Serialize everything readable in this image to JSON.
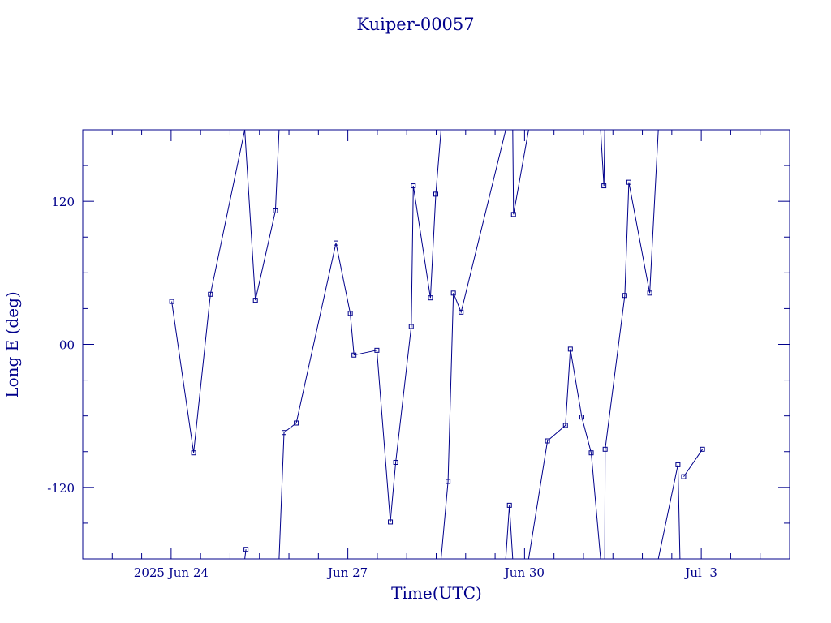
{
  "chart_data": {
    "type": "line",
    "title": "Kuiper-00057",
    "xlabel": "Time(UTC)",
    "ylabel": "Long E (deg)",
    "xlim": [
      "2025-06-22T12:00",
      "2025-07-04T12:00"
    ],
    "ylim": [
      -180,
      180
    ],
    "x_ticks": [
      {
        "t": "2025-06-24T00:00",
        "label": "2025 Jun 24"
      },
      {
        "t": "2025-06-27T00:00",
        "label": "Jun 27"
      },
      {
        "t": "2025-06-30T00:00",
        "label": "Jun 30"
      },
      {
        "t": "2025-07-03T00:00",
        "label": "Jul  3"
      }
    ],
    "y_ticks": [
      {
        "v": 120,
        "label": "120"
      },
      {
        "v": 0,
        "label": "00"
      },
      {
        "v": -120,
        "label": "-120"
      }
    ],
    "series": [
      {
        "color": "#00008b",
        "segments": [
          [
            {
              "x": "2025-06-24T00:15",
              "y": 36
            },
            {
              "x": "2025-06-24T09:10",
              "y": -91
            },
            {
              "x": "2025-06-24T16:00",
              "y": 42
            },
            {
              "x": "2025-06-25T06:00",
              "y": 180
            }
          ],
          [
            {
              "x": "2025-06-25T06:00",
              "y": 180
            },
            {
              "x": "2025-06-25T10:20",
              "y": 37
            },
            {
              "x": "2025-06-25T18:30",
              "y": 112
            },
            {
              "x": "2025-06-25T20:00",
              "y": 180
            }
          ],
          [
            {
              "x": "2025-06-25T06:00",
              "y": -180
            },
            {
              "x": "2025-06-25T06:30",
              "y": -172
            }
          ],
          [
            {
              "x": "2025-06-25T20:00",
              "y": -180
            },
            {
              "x": "2025-06-25T22:00",
              "y": -74
            },
            {
              "x": "2025-06-26T03:00",
              "y": -66
            },
            {
              "x": "2025-06-26T19:10",
              "y": 85
            },
            {
              "x": "2025-06-27T01:00",
              "y": 26
            },
            {
              "x": "2025-06-27T02:30",
              "y": -9
            },
            {
              "x": "2025-06-27T11:50",
              "y": -5
            },
            {
              "x": "2025-06-27T17:20",
              "y": -149
            },
            {
              "x": "2025-06-27T19:30",
              "y": -99
            },
            {
              "x": "2025-06-28T01:50",
              "y": 15
            },
            {
              "x": "2025-06-28T02:40",
              "y": 133
            },
            {
              "x": "2025-06-28T09:40",
              "y": 39
            },
            {
              "x": "2025-06-28T11:50",
              "y": 126
            },
            {
              "x": "2025-06-28T14:00",
              "y": 180
            }
          ],
          [
            {
              "x": "2025-06-28T14:00",
              "y": -180
            },
            {
              "x": "2025-06-28T16:50",
              "y": -115
            },
            {
              "x": "2025-06-28T19:00",
              "y": 43
            },
            {
              "x": "2025-06-28T22:10",
              "y": 27
            },
            {
              "x": "2025-06-29T16:20",
              "y": 180
            }
          ],
          [
            {
              "x": "2025-06-29T16:20",
              "y": -180
            },
            {
              "x": "2025-06-29T17:50",
              "y": -135
            },
            {
              "x": "2025-06-29T19:10",
              "y": -180
            }
          ],
          [
            {
              "x": "2025-06-29T19:10",
              "y": 180
            },
            {
              "x": "2025-06-29T19:30",
              "y": 109
            },
            {
              "x": "2025-06-30T01:40",
              "y": 180
            }
          ],
          [
            {
              "x": "2025-06-30T01:40",
              "y": -180
            },
            {
              "x": "2025-06-30T09:20",
              "y": -81
            },
            {
              "x": "2025-06-30T16:40",
              "y": -68
            },
            {
              "x": "2025-06-30T18:40",
              "y": -4
            },
            {
              "x": "2025-06-30T23:20",
              "y": -61
            },
            {
              "x": "2025-07-01T03:10",
              "y": -91
            },
            {
              "x": "2025-07-01T07:00",
              "y": -180
            }
          ],
          [
            {
              "x": "2025-07-01T07:00",
              "y": 180
            },
            {
              "x": "2025-07-01T08:20",
              "y": 133
            },
            {
              "x": "2025-07-01T08:40",
              "y": 180
            }
          ],
          [
            {
              "x": "2025-07-01T08:40",
              "y": -180
            },
            {
              "x": "2025-07-01T08:50",
              "y": -88
            },
            {
              "x": "2025-07-01T16:50",
              "y": 41
            },
            {
              "x": "2025-07-01T18:30",
              "y": 136
            },
            {
              "x": "2025-07-02T03:00",
              "y": 43
            },
            {
              "x": "2025-07-02T06:30",
              "y": 180
            }
          ],
          [
            {
              "x": "2025-07-02T06:30",
              "y": -180
            },
            {
              "x": "2025-07-02T14:30",
              "y": -101
            },
            {
              "x": "2025-07-02T15:20",
              "y": -180
            }
          ],
          [
            {
              "x": "2025-07-02T16:50",
              "y": -111
            },
            {
              "x": "2025-07-03T00:30",
              "y": -88
            }
          ]
        ]
      }
    ]
  }
}
